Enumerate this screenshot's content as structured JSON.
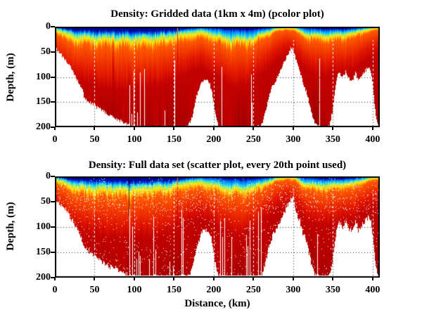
{
  "figure": {
    "background": "#ffffff",
    "axes_color": "#000000"
  },
  "chart_data": [
    {
      "type": "heatmap",
      "subtype": "pcolor",
      "title": "Density: Gridded data (1km x 4m) (pcolor plot)",
      "xlabel": "",
      "ylabel": "Depth, (m)",
      "x_range_km": [
        0,
        409
      ],
      "depth_range_m": [
        0,
        200
      ],
      "xticks": [
        0,
        50,
        100,
        150,
        200,
        250,
        300,
        350,
        400
      ],
      "yticks": [
        0,
        50,
        100,
        150,
        200
      ],
      "grid": "dotted",
      "max_data_depth_m": 198.5,
      "anomaly_streaks": [
        {
          "km": 73,
          "kind": "warm"
        },
        {
          "km": 154,
          "kind": "warm"
        }
      ],
      "speckle": 0
    },
    {
      "type": "scatter",
      "title": "Density: Full data set (scatter plot, every 20th point used)",
      "xlabel": "Distance, (km)",
      "ylabel": "Depth, (m)",
      "x_range_km": [
        0,
        409
      ],
      "depth_range_m": [
        0,
        200
      ],
      "xticks": [
        0,
        50,
        100,
        150,
        200,
        250,
        300,
        350,
        400
      ],
      "yticks": [
        0,
        50,
        100,
        150,
        200
      ],
      "grid": "dotted",
      "max_data_depth_m": 196,
      "anomaly_streaks": [
        {
          "km": 93,
          "kind": "dark"
        },
        {
          "km": 154,
          "kind": "warm"
        }
      ],
      "speckle": 1
    }
  ],
  "density_field": {
    "x_max_km": 409,
    "bathymetry_km": [
      0,
      9,
      17,
      26,
      34,
      37,
      48,
      64,
      85,
      95,
      105,
      160,
      168,
      173,
      178,
      183,
      187,
      191,
      194,
      197,
      200,
      203,
      206,
      254,
      260,
      265,
      269,
      273,
      278,
      284,
      290,
      295,
      298,
      301,
      305,
      309,
      313,
      317,
      321,
      325,
      329,
      333,
      341,
      345,
      349,
      352,
      355,
      358,
      362,
      366,
      370,
      374,
      378,
      382,
      386,
      390,
      394,
      397,
      400,
      403,
      406,
      409
    ],
    "bathymetry_depth_m": [
      42,
      58,
      75,
      100,
      125,
      142,
      155,
      172,
      190,
      197,
      200,
      200,
      196,
      178,
      138,
      116,
      106,
      104,
      110,
      128,
      158,
      186,
      200,
      200,
      196,
      168,
      140,
      120,
      106,
      86,
      64,
      48,
      41,
      53,
      76,
      96,
      116,
      133,
      160,
      184,
      197,
      200,
      200,
      196,
      170,
      130,
      100,
      92,
      99,
      89,
      103,
      108,
      92,
      106,
      99,
      88,
      82,
      85,
      120,
      170,
      195,
      200
    ],
    "boundary_km": [
      0,
      6,
      15,
      30,
      60,
      100,
      140,
      158,
      170,
      185,
      200,
      215,
      232,
      250,
      265,
      280,
      292,
      302,
      315,
      330,
      345,
      360,
      375,
      390,
      400,
      409
    ],
    "navy_bottom_m": [
      1,
      3,
      6,
      10,
      12,
      13,
      11,
      7,
      4,
      3,
      4,
      7,
      9,
      7,
      4,
      1,
      0.5,
      0.5,
      4,
      6,
      7,
      6,
      5,
      2,
      1,
      0
    ],
    "cyan_bottom_m": [
      3,
      6,
      10,
      16,
      18,
      19,
      16,
      11,
      8,
      7,
      12,
      18,
      21,
      17,
      9,
      3,
      1,
      2,
      12,
      14,
      14,
      12,
      10,
      4,
      2,
      1
    ],
    "yellow_bottom_m": [
      7,
      12,
      18,
      26,
      28,
      29,
      26,
      19,
      15,
      14,
      20,
      27,
      30,
      25,
      15,
      6,
      3,
      5,
      18,
      21,
      21,
      19,
      16,
      8,
      5,
      3
    ],
    "orange_bottom_m": [
      14,
      20,
      28,
      38,
      42,
      43,
      39,
      30,
      26,
      24,
      31,
      39,
      43,
      36,
      23,
      11,
      6,
      10,
      27,
      31,
      31,
      28,
      25,
      14,
      9,
      6
    ],
    "dark_red_top_m": [
      45,
      55,
      70,
      85,
      95,
      98,
      90,
      76,
      66,
      60,
      72,
      86,
      94,
      82,
      62,
      42,
      32,
      40,
      62,
      72,
      72,
      68,
      62,
      46,
      38,
      30
    ],
    "palette": [
      {
        "name": "surface-navy",
        "color": "#000076"
      },
      {
        "name": "blue",
        "color": "#0e50e8"
      },
      {
        "name": "cyan",
        "color": "#38e0de"
      },
      {
        "name": "yellow",
        "color": "#ffe816"
      },
      {
        "name": "orange",
        "color": "#ff5a00"
      },
      {
        "name": "red",
        "color": "#e21600"
      },
      {
        "name": "dark-red",
        "color": "#a00000"
      }
    ]
  }
}
